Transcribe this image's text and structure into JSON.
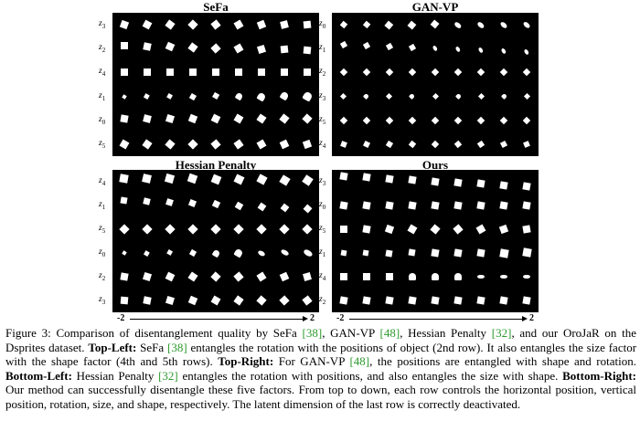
{
  "panels": [
    {
      "title": "SeFa",
      "rows": [
        "z3",
        "z2",
        "z4",
        "z1",
        "z0",
        "z5"
      ]
    },
    {
      "title": "GAN-VP",
      "rows": [
        "z0",
        "z1",
        "z2",
        "z3",
        "z5",
        "z4"
      ]
    },
    {
      "title": "Hessian Penalty",
      "rows": [
        "z4",
        "z1",
        "z5",
        "z0",
        "z2",
        "z3"
      ]
    },
    {
      "title": "Ours",
      "rows": [
        "z3",
        "z0",
        "z5",
        "z1",
        "z4",
        "z2"
      ]
    }
  ],
  "axis": {
    "min": "-2",
    "max": "2"
  },
  "caption": {
    "lead": "Figure 3: Comparison of disentanglement quality by SeFa ",
    "c38": "[38]",
    "t1": ", GAN-VP ",
    "c48": "[48]",
    "t2": ", Hessian Penalty ",
    "c32": "[32]",
    "t3": ", and our OroJaR on the Dsprites dataset. ",
    "tl_label": "Top-Left:",
    "t4": " SeFa ",
    "t5": " entangles the rotation with the positions of object (2nd row). It also entangles the size factor with the shape factor (4th and 5th rows). ",
    "tr_label": "Top-Right:",
    "t6": " For GAN-VP ",
    "t7": ", the positions are entangled with shape and rotation. ",
    "bl_label": "Bottom-Left:",
    "t8": " Hessian Penalty ",
    "t9": " entangles the rotation with positions, and also entangles the size with shape. ",
    "br_label": "Bottom-Right:",
    "t10": " Our method can successfully disentangle these five factors. From top to down, each row controls the horizontal position, vertical position, rotation, size, and shape, respectively. The latent dimension of the last row is correctly deactivated."
  }
}
